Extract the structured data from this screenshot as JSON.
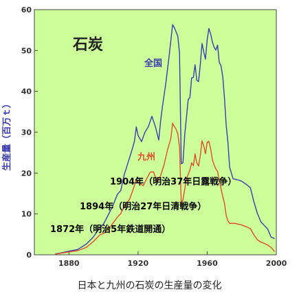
{
  "chart_data": {
    "type": "line",
    "title": "石炭",
    "caption": "日本と九州の石炭の生産量の変化",
    "ylabel": "生産量（百万ｔ）",
    "xlabel": "",
    "xlim": [
      1860,
      2000
    ],
    "ylim": [
      0,
      60
    ],
    "xticks": [
      1880,
      1920,
      1960,
      2000
    ],
    "yticks": [
      0,
      10,
      20,
      30,
      40,
      50,
      60
    ],
    "grid": false,
    "background_color": "#ccff99",
    "series": [
      {
        "name": "全国",
        "color": "#3b3bb0",
        "points": [
          [
            1872,
            0.2
          ],
          [
            1875,
            0.4
          ],
          [
            1880,
            0.9
          ],
          [
            1885,
            1.3
          ],
          [
            1890,
            2.6
          ],
          [
            1894,
            4.3
          ],
          [
            1898,
            6.7
          ],
          [
            1900,
            7.5
          ],
          [
            1904,
            10.8
          ],
          [
            1905,
            11.5
          ],
          [
            1908,
            14.8
          ],
          [
            1910,
            15.7
          ],
          [
            1912,
            19.6
          ],
          [
            1914,
            22.3
          ],
          [
            1916,
            25.0
          ],
          [
            1917,
            26.4
          ],
          [
            1918,
            28.0
          ],
          [
            1919,
            31.3
          ],
          [
            1920,
            29.2
          ],
          [
            1922,
            27.7
          ],
          [
            1924,
            30.0
          ],
          [
            1926,
            31.4
          ],
          [
            1928,
            33.9
          ],
          [
            1930,
            31.4
          ],
          [
            1932,
            28.1
          ],
          [
            1933,
            32.5
          ],
          [
            1934,
            36.0
          ],
          [
            1936,
            41.8
          ],
          [
            1938,
            48.7
          ],
          [
            1940,
            56.3
          ],
          [
            1941,
            55.6
          ],
          [
            1943,
            53.5
          ],
          [
            1944,
            49.3
          ],
          [
            1945,
            22.3
          ],
          [
            1946,
            22.5
          ],
          [
            1947,
            29.3
          ],
          [
            1948,
            33.7
          ],
          [
            1949,
            38.0
          ],
          [
            1950,
            38.5
          ],
          [
            1951,
            43.3
          ],
          [
            1952,
            43.4
          ],
          [
            1953,
            46.5
          ],
          [
            1954,
            42.7
          ],
          [
            1955,
            42.4
          ],
          [
            1956,
            46.6
          ],
          [
            1957,
            51.7
          ],
          [
            1958,
            49.7
          ],
          [
            1959,
            47.9
          ],
          [
            1960,
            52.6
          ],
          [
            1961,
            55.4
          ],
          [
            1962,
            54.0
          ],
          [
            1963,
            52.1
          ],
          [
            1964,
            50.8
          ],
          [
            1965,
            50.1
          ],
          [
            1966,
            51.3
          ],
          [
            1967,
            47.1
          ],
          [
            1968,
            46.3
          ],
          [
            1969,
            43.6
          ],
          [
            1970,
            38.3
          ],
          [
            1971,
            31.7
          ],
          [
            1972,
            27.5
          ],
          [
            1973,
            21.4
          ],
          [
            1975,
            18.6
          ],
          [
            1978,
            18.3
          ],
          [
            1980,
            18.0
          ],
          [
            1983,
            17.1
          ],
          [
            1985,
            16.4
          ],
          [
            1987,
            13.0
          ],
          [
            1989,
            10.2
          ],
          [
            1991,
            8.1
          ],
          [
            1993,
            7.2
          ],
          [
            1995,
            6.3
          ],
          [
            1997,
            4.3
          ],
          [
            1999,
            4.0
          ]
        ]
      },
      {
        "name": "九州",
        "color": "#e04a2a",
        "points": [
          [
            1872,
            0.15
          ],
          [
            1880,
            0.7
          ],
          [
            1885,
            1.0
          ],
          [
            1890,
            1.8
          ],
          [
            1894,
            3.2
          ],
          [
            1898,
            4.9
          ],
          [
            1900,
            5.2
          ],
          [
            1904,
            6.9
          ],
          [
            1908,
            9.2
          ],
          [
            1910,
            10.1
          ],
          [
            1913,
            12.6
          ],
          [
            1915,
            13.5
          ],
          [
            1917,
            15.8
          ],
          [
            1919,
            18.4
          ],
          [
            1920,
            17.8
          ],
          [
            1923,
            16.9
          ],
          [
            1925,
            18.6
          ],
          [
            1927,
            20.2
          ],
          [
            1929,
            20.3
          ],
          [
            1931,
            17.8
          ],
          [
            1933,
            19.3
          ],
          [
            1935,
            22.0
          ],
          [
            1937,
            25.6
          ],
          [
            1939,
            28.5
          ],
          [
            1940,
            32.2
          ],
          [
            1941,
            31.4
          ],
          [
            1942,
            30.7
          ],
          [
            1943,
            29.6
          ],
          [
            1944,
            26.2
          ],
          [
            1945,
            12.6
          ],
          [
            1946,
            13.5
          ],
          [
            1948,
            18.6
          ],
          [
            1950,
            20.8
          ],
          [
            1951,
            22.5
          ],
          [
            1952,
            21.8
          ],
          [
            1953,
            24.7
          ],
          [
            1954,
            22.5
          ],
          [
            1955,
            21.7
          ],
          [
            1956,
            24.3
          ],
          [
            1957,
            27.9
          ],
          [
            1958,
            26.7
          ],
          [
            1959,
            24.7
          ],
          [
            1960,
            27.5
          ],
          [
            1961,
            27.8
          ],
          [
            1962,
            25.9
          ],
          [
            1963,
            23.3
          ],
          [
            1964,
            22.0
          ],
          [
            1965,
            21.0
          ],
          [
            1966,
            20.4
          ],
          [
            1967,
            18.2
          ],
          [
            1968,
            16.2
          ],
          [
            1969,
            14.3
          ],
          [
            1970,
            12.6
          ],
          [
            1971,
            9.6
          ],
          [
            1972,
            8.3
          ],
          [
            1973,
            7.7
          ],
          [
            1976,
            7.7
          ],
          [
            1980,
            7.3
          ],
          [
            1983,
            6.8
          ],
          [
            1985,
            6.4
          ],
          [
            1987,
            4.9
          ],
          [
            1989,
            3.7
          ],
          [
            1991,
            3.1
          ],
          [
            1993,
            2.8
          ],
          [
            1995,
            2.4
          ],
          [
            1997,
            1.8
          ],
          [
            1999,
            0.8
          ]
        ]
      }
    ],
    "annotations": [
      {
        "text": "1904年（明治37年日露戦争）",
        "x": 1904,
        "y": 10.8
      },
      {
        "text": "1894年（明治27年日清戦争）",
        "x": 1894,
        "y": 4.3
      },
      {
        "text": "1872年（明治5年鉄道開通）",
        "x": 1872,
        "y": 0.2
      }
    ]
  }
}
